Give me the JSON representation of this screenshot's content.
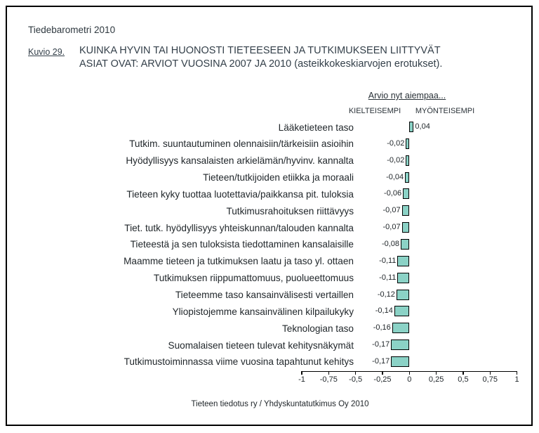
{
  "document": {
    "header": "Tiedebarometri 2010",
    "figure_label": "Kuvio 29.",
    "figure_title_line1": "KUINKA HYVIN TAI HUONOSTI TIETEESEEN JA TUTKIMUKSEEN LIITTYVÄT",
    "figure_title_line2": "ASIAT OVAT: ARVIOT VUOSINA 2007 JA 2010 (asteikkokeskiarvojen erotukset).",
    "footer_source": "Tieteen tiedotus ry / Yhdyskuntatutkimus Oy 2010"
  },
  "chart_header": {
    "scale_title": "Arvio nyt aiempaa...",
    "negative_label": "KIELTEISEMPI",
    "positive_label": "MYÖNTEISEMPI"
  },
  "chart_data": {
    "type": "bar",
    "orientation": "horizontal",
    "title": "KUINKA HYVIN TAI HUONOSTI TIETEESEEN JA TUTKIMUKSEEN LIITTYVÄT ASIAT OVAT: ARVIOT VUOSINA 2007 JA 2010 (asteikkokeskiarvojen erotukset).",
    "categories": [
      "Lääketieteen taso",
      "Tutkim. suuntautuminen olennaisiin/tärkeisiin asioihin",
      "Hyödyllisyys kansalaisten arkielämän/hyvinv. kannalta",
      "Tieteen/tutkijoiden etiikka ja moraali",
      "Tieteen kyky tuottaa luotettavia/paikkansa pit. tuloksia",
      "Tutkimusrahoituksen riittävyys",
      "Tiet. tutk. hyödyllisyys yhteiskunnan/talouden kannalta",
      "Tieteestä ja sen tuloksista tiedottaminen kansalaisille",
      "Maamme tieteen ja tutkimuksen laatu ja taso yl. ottaen",
      "Tutkimuksen riippumattomuus, puolueettomuus",
      "Tieteemme taso kansainvälisesti vertaillen",
      "Yliopistojemme kansainvälinen kilpailukyky",
      "Teknologian taso",
      "Suomalaisen tieteen tulevat kehitysnäkymät",
      "Tutkimustoiminnassa viime vuosina tapahtunut kehitys"
    ],
    "values": [
      0.04,
      -0.02,
      -0.02,
      -0.04,
      -0.06,
      -0.07,
      -0.07,
      -0.08,
      -0.11,
      -0.11,
      -0.12,
      -0.14,
      -0.16,
      -0.17,
      -0.17
    ],
    "value_labels": [
      "0,04",
      "-0,02",
      "-0,02",
      "-0,04",
      "-0,06",
      "-0,07",
      "-0,07",
      "-0,08",
      "-0,11",
      "-0,11",
      "-0,12",
      "-0,14",
      "-0,16",
      "-0,17",
      "-0,17"
    ],
    "xlim": [
      -1,
      1
    ],
    "x_ticks": [
      -1,
      -0.75,
      -0.5,
      -0.25,
      0,
      0.25,
      0.5,
      0.75,
      1
    ],
    "x_tick_labels": [
      "-1",
      "-0,75",
      "-0,5",
      "-0,25",
      "0",
      "0,25",
      "0,5",
      "0,75",
      "1"
    ],
    "bar_color": "#8BD2C6",
    "bar_border_color": "#000000",
    "grid": false,
    "legend": false
  }
}
